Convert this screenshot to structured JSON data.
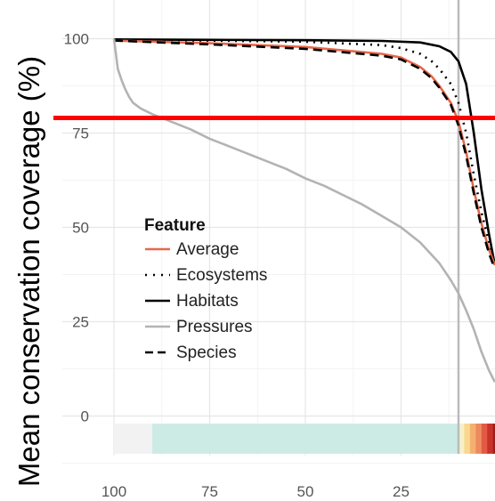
{
  "chart_data": {
    "type": "line",
    "title": "",
    "xlabel": "",
    "ylabel": "Mean conservation coverage (%)",
    "x_reversed": true,
    "xlim": [
      100,
      0
    ],
    "ylim": [
      -12,
      105
    ],
    "x_ticks": [
      "100",
      "75",
      "50",
      "25"
    ],
    "y_ticks": [
      "100",
      "75",
      "50",
      "25",
      "0"
    ],
    "grid": true,
    "legend": {
      "title": "Feature",
      "placement": "center-left",
      "items": [
        {
          "label": "Average",
          "color": "#e8674a",
          "dash": "solid"
        },
        {
          "label": "Ecosystems",
          "color": "#000000",
          "dash": "dotted"
        },
        {
          "label": "Habitats",
          "color": "#000000",
          "dash": "solid"
        },
        {
          "label": "Pressures",
          "color": "#b3b3b3",
          "dash": "solid"
        },
        {
          "label": "Species",
          "color": "#000000",
          "dash": "dashed"
        }
      ]
    },
    "series": [
      {
        "name": "Habitats",
        "color": "#000000",
        "dash": "solid",
        "x": [
          100,
          75,
          50,
          30,
          20,
          15,
          12,
          10,
          8,
          6,
          4,
          2,
          0.5
        ],
        "y": [
          99.8,
          99.7,
          99.6,
          99.4,
          99,
          98,
          96.5,
          94,
          88,
          75,
          60,
          48,
          40
        ]
      },
      {
        "name": "Ecosystems",
        "color": "#000000",
        "dash": "dotted",
        "x": [
          100,
          75,
          50,
          30,
          25,
          20,
          17,
          15,
          12,
          10,
          8,
          6,
          4,
          2,
          0.5
        ],
        "y": [
          99.6,
          99.5,
          99.2,
          98.3,
          97.5,
          96,
          94,
          92,
          88,
          83,
          75,
          64,
          54,
          46,
          40
        ]
      },
      {
        "name": "Average",
        "color": "#e8674a",
        "dash": "solid",
        "x": [
          100,
          75,
          50,
          30,
          25,
          20,
          17,
          15,
          12,
          10,
          8,
          6,
          4,
          2,
          0.5
        ],
        "y": [
          99.5,
          98.8,
          97.8,
          96,
          95,
          92.5,
          90,
          87.5,
          83,
          78,
          70,
          60,
          51,
          44,
          40
        ]
      },
      {
        "name": "Species",
        "color": "#000000",
        "dash": "dashed",
        "x": [
          100,
          75,
          50,
          30,
          25,
          20,
          17,
          15,
          12,
          10,
          8,
          6,
          4,
          2,
          0.5
        ],
        "y": [
          99.5,
          98.5,
          97.3,
          95.5,
          94.5,
          92,
          89.5,
          87,
          82.5,
          77,
          69,
          59,
          50,
          43,
          39
        ]
      },
      {
        "name": "Pressures",
        "color": "#b3b3b3",
        "dash": "solid",
        "x": [
          100,
          99.5,
          99,
          98,
          97,
          96,
          95,
          93,
          90,
          85,
          80,
          75,
          70,
          65,
          60,
          55,
          50,
          45,
          40,
          35,
          30,
          25,
          20,
          15,
          12,
          10,
          8,
          6,
          4,
          2,
          0.5
        ],
        "y": [
          100,
          96,
          92,
          89,
          86.5,
          84.5,
          83,
          81.5,
          80,
          78,
          76,
          73.5,
          71.5,
          69.5,
          67.5,
          65.5,
          63,
          61,
          58.5,
          56,
          53,
          50,
          46,
          40.5,
          36,
          32.5,
          28,
          23,
          17,
          12,
          9
        ]
      }
    ],
    "reference_lines": [
      {
        "axis": "x",
        "value": 10,
        "color": "#bbbbbb"
      },
      {
        "axis": "y",
        "value": 79,
        "color": "#ff0000"
      }
    ],
    "color_bar": {
      "y_range": [
        -10,
        -2
      ],
      "segments": [
        {
          "from": 100,
          "to": 90,
          "color": "#f2f2f2"
        },
        {
          "from": 90,
          "to": 10,
          "color": "#cdebe5"
        },
        {
          "from": 10,
          "to": 8.5,
          "color": "#f6f1c9"
        },
        {
          "from": 8.5,
          "to": 7,
          "color": "#f8d88c"
        },
        {
          "from": 7,
          "to": 5.5,
          "color": "#f5b06f"
        },
        {
          "from": 5.5,
          "to": 4,
          "color": "#ee8a5f"
        },
        {
          "from": 4,
          "to": 2.5,
          "color": "#e35a44"
        },
        {
          "from": 2.5,
          "to": 1,
          "color": "#c93229"
        },
        {
          "from": 1,
          "to": 0,
          "color": "#9e1d1d"
        }
      ]
    }
  }
}
